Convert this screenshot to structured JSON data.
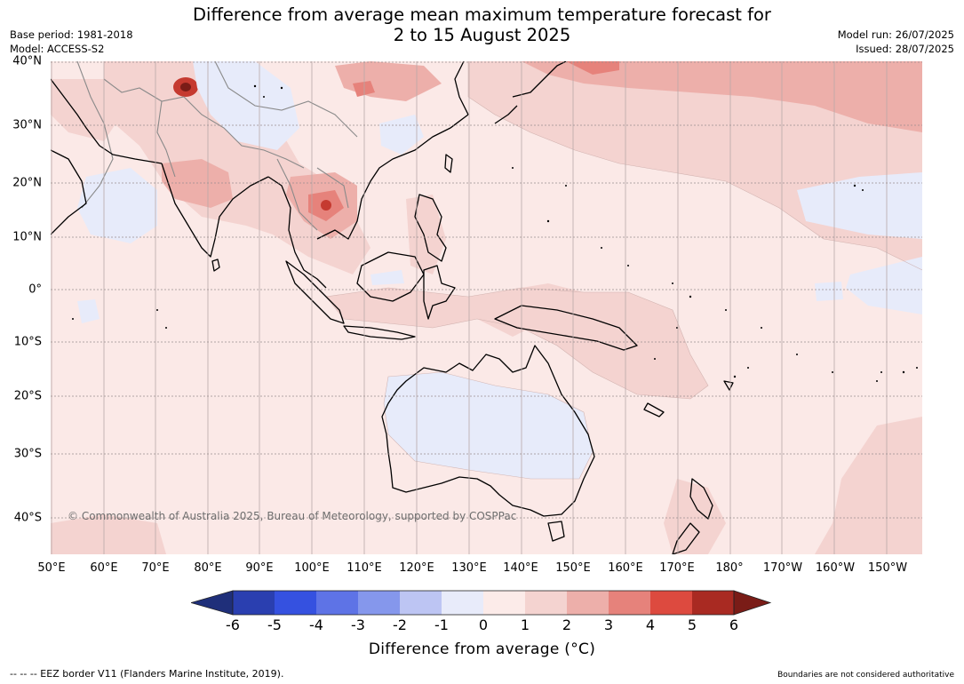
{
  "title_line1": "Difference from average mean maximum temperature forecast for",
  "title_line2": "2 to 15 August 2025",
  "base_period": "Base period: 1981-2018",
  "model": "Model: ACCESS-S2",
  "model_run": "Model run: 26/07/2025",
  "issued": "Issued: 28/07/2025",
  "copyright": "© Commonwealth of Australia 2025, Bureau of Meteorology, supported by COSPPac",
  "lat_labels": [
    "40°N",
    "30°N",
    "20°N",
    "10°N",
    "0°",
    "10°S",
    "20°S",
    "30°S",
    "40°S"
  ],
  "lon_labels": [
    "50°E",
    "60°E",
    "70°E",
    "80°E",
    "90°E",
    "100°E",
    "110°E",
    "120°E",
    "130°E",
    "140°E",
    "150°E",
    "160°E",
    "170°E",
    "180°",
    "170°W",
    "160°W",
    "150°W"
  ],
  "colorbar": {
    "ticks": [
      "-6",
      "-5",
      "-4",
      "-3",
      "-2",
      "-1",
      "0",
      "1",
      "2",
      "3",
      "4",
      "5",
      "6"
    ],
    "label": "Difference from average (°C)",
    "colors": [
      "#1f2f7a",
      "#2a3fb0",
      "#3551e0",
      "#5e73e6",
      "#8597ec",
      "#bdc5f3",
      "#e8ebfa",
      "#fcebe9",
      "#f4d3d0",
      "#edafaa",
      "#e6827b",
      "#dd4a3f",
      "#a92a22",
      "#7a1c17"
    ]
  },
  "footer_left": "--  --  -- EEZ border V11 (Flanders Marine Institute, 2019).",
  "footer_right": "Boundaries are not considered authoritative",
  "map_colors": {
    "base": "#fbe9e7",
    "cool": "#e7ebfa",
    "warm1": "#f4d3d0",
    "warm2": "#edafaa",
    "warm3": "#e6827b",
    "hot": "#c53a30",
    "coast": "#000000",
    "border": "#8a8a8a",
    "grid": "#b7a8a8"
  }
}
